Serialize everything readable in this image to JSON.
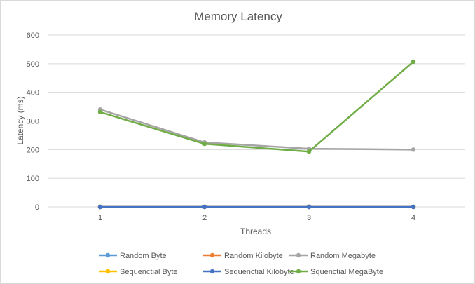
{
  "chart_data": {
    "type": "line",
    "title": "Memory Latency",
    "xlabel": "Threads",
    "ylabel": "Latency (ms)",
    "categories": [
      "1",
      "2",
      "3",
      "4"
    ],
    "ylim": [
      0,
      600
    ],
    "yticks": [
      "0",
      "100",
      "200",
      "300",
      "400",
      "500",
      "600"
    ],
    "grid": "horizontal",
    "legend": "bottom",
    "series": [
      {
        "name": "Random Byte",
        "color": "#5b9bd5",
        "values": [
          0,
          0,
          0,
          0
        ]
      },
      {
        "name": "Random Kilobyte",
        "color": "#ed7d31",
        "values": [
          0,
          0,
          0,
          0
        ]
      },
      {
        "name": "Random Megabyte",
        "color": "#a5a5a5",
        "values": [
          340,
          225,
          203,
          200
        ]
      },
      {
        "name": "Sequenctial Byte",
        "color": "#ffc000",
        "values": [
          0,
          0,
          0,
          0
        ]
      },
      {
        "name": "Sequenctial Kilobyte",
        "color": "#4472c4",
        "values": [
          0,
          0,
          0,
          0
        ]
      },
      {
        "name": "Squenctial MegaByte",
        "color": "#70ad47",
        "values": [
          331,
          220,
          193,
          507
        ]
      }
    ]
  }
}
